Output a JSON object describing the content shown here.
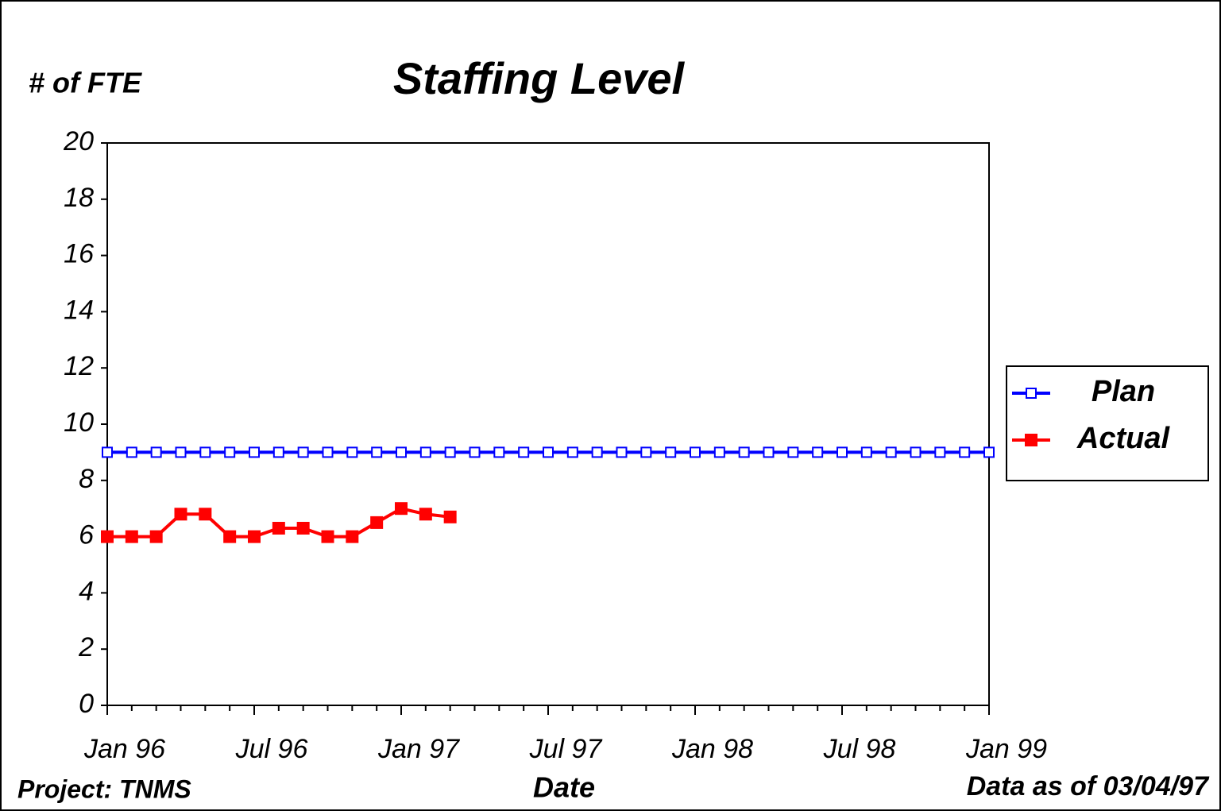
{
  "chart_data": {
    "type": "line",
    "title": "Staffing Level",
    "y_label": "# of FTE",
    "x_label": "Date",
    "footnote_left": "Project: TNMS",
    "footnote_right": "Data as of 03/04/97",
    "categories": [
      "Jan 96",
      null,
      null,
      null,
      null,
      null,
      "Jul 96",
      null,
      null,
      null,
      null,
      null,
      "Jan 97",
      null,
      null,
      null,
      null,
      null,
      "Jul 97",
      null,
      null,
      null,
      null,
      null,
      "Jan 98",
      null,
      null,
      null,
      null,
      null,
      "Jul 98",
      null,
      null,
      null,
      null,
      null,
      "Jan 99"
    ],
    "series": [
      {
        "name": "Plan",
        "color": "#0000ff",
        "marker": "open-square",
        "values": [
          9,
          9,
          9,
          9,
          9,
          9,
          9,
          9,
          9,
          9,
          9,
          9,
          9,
          9,
          9,
          9,
          9,
          9,
          9,
          9,
          9,
          9,
          9,
          9,
          9,
          9,
          9,
          9,
          9,
          9,
          9,
          9,
          9,
          9,
          9,
          9,
          9
        ]
      },
      {
        "name": "Actual",
        "color": "#ff0000",
        "marker": "filled-square",
        "values": [
          6,
          6,
          6,
          6.8,
          6.8,
          6,
          6,
          6.3,
          6.3,
          6,
          6,
          6.5,
          7,
          6.8,
          6.7,
          null,
          null,
          null,
          null,
          null,
          null,
          null,
          null,
          null,
          null,
          null,
          null,
          null,
          null,
          null,
          null,
          null,
          null,
          null,
          null,
          null,
          null
        ]
      }
    ],
    "ylim": [
      0,
      20
    ],
    "yticks": [
      0,
      2,
      4,
      6,
      8,
      10,
      12,
      14,
      16,
      18,
      20
    ],
    "grid": false,
    "legend": "right"
  }
}
